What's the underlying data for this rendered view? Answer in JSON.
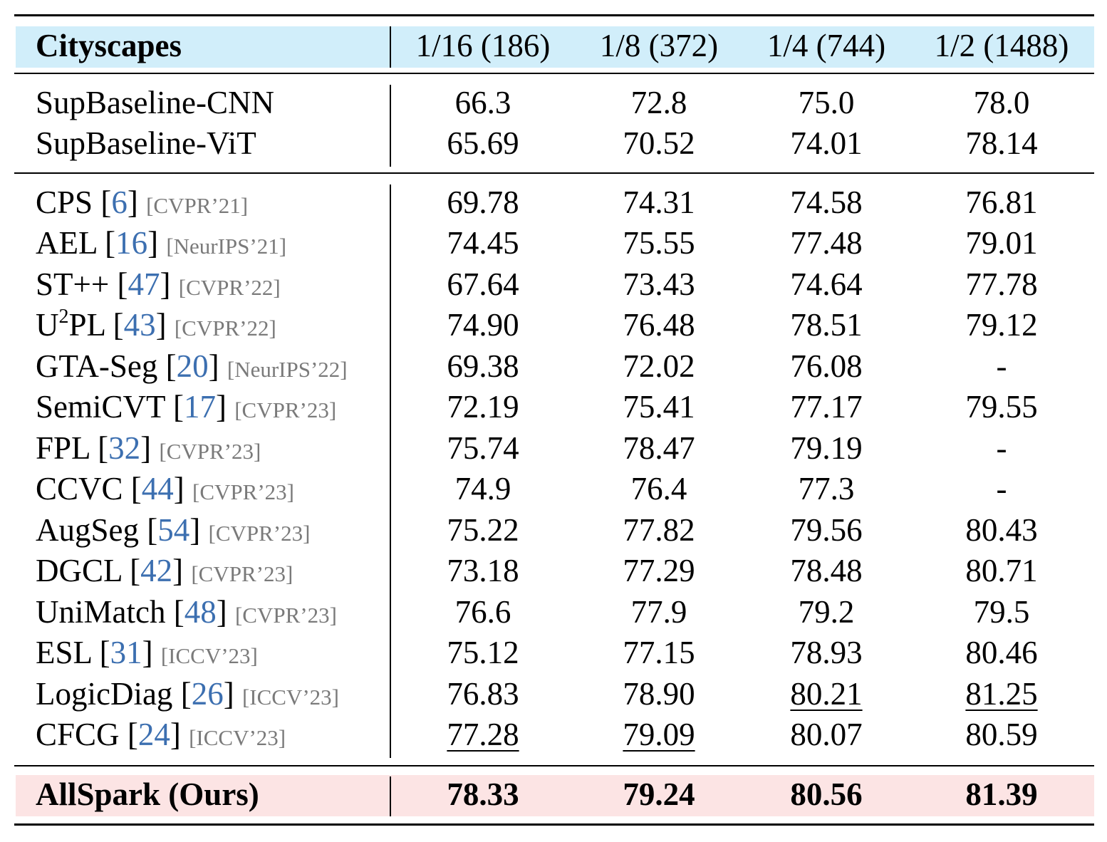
{
  "header": {
    "dataset": "Cityscapes",
    "columns": [
      "1/16 (186)",
      "1/8 (372)",
      "1/4 (744)",
      "1/2 (1488)"
    ]
  },
  "baselines": [
    {
      "name": "SupBaseline-CNN",
      "values": [
        "66.3",
        "72.8",
        "75.0",
        "78.0"
      ]
    },
    {
      "name": "SupBaseline-ViT",
      "values": [
        "65.69",
        "70.52",
        "74.01",
        "78.14"
      ]
    }
  ],
  "methods": [
    {
      "name": "CPS",
      "cite": "6",
      "venue": "[CVPR’21]",
      "values": [
        "69.78",
        "74.31",
        "74.58",
        "76.81"
      ]
    },
    {
      "name": "AEL",
      "cite": "16",
      "venue": "[NeurIPS’21]",
      "values": [
        "74.45",
        "75.55",
        "77.48",
        "79.01"
      ]
    },
    {
      "name": "ST++",
      "cite": "47",
      "venue": "[CVPR’22]",
      "values": [
        "67.64",
        "73.43",
        "74.64",
        "77.78"
      ]
    },
    {
      "name_base": "U",
      "name_sup": "2",
      "name_rest": "PL",
      "cite": "43",
      "venue": "[CVPR’22]",
      "values": [
        "74.90",
        "76.48",
        "78.51",
        "79.12"
      ]
    },
    {
      "name": "GTA-Seg",
      "cite": "20",
      "venue": "[NeurIPS’22]",
      "values": [
        "69.38",
        "72.02",
        "76.08",
        "-"
      ]
    },
    {
      "name": "SemiCVT",
      "cite": "17",
      "venue": "[CVPR’23]",
      "values": [
        "72.19",
        "75.41",
        "77.17",
        "79.55"
      ]
    },
    {
      "name": "FPL",
      "cite": "32",
      "venue": "[CVPR’23]",
      "values": [
        "75.74",
        "78.47",
        "79.19",
        "-"
      ]
    },
    {
      "name": "CCVC",
      "cite": "44",
      "venue": "[CVPR’23]",
      "values": [
        "74.9",
        "76.4",
        "77.3",
        "-"
      ]
    },
    {
      "name": "AugSeg",
      "cite": "54",
      "venue": "[CVPR’23]",
      "values": [
        "75.22",
        "77.82",
        "79.56",
        "80.43"
      ]
    },
    {
      "name": "DGCL",
      "cite": "42",
      "venue": "[CVPR’23]",
      "values": [
        "73.18",
        "77.29",
        "78.48",
        "80.71"
      ]
    },
    {
      "name": "UniMatch",
      "cite": "48",
      "venue": "[CVPR’23]",
      "values": [
        "76.6",
        "77.9",
        "79.2",
        "79.5"
      ]
    },
    {
      "name": "ESL",
      "cite": "31",
      "venue": "[ICCV’23]",
      "values": [
        "75.12",
        "77.15",
        "78.93",
        "80.46"
      ]
    },
    {
      "name": "LogicDiag",
      "cite": "26",
      "venue": "[ICCV’23]",
      "values": [
        "76.83",
        "78.90",
        "80.21",
        "81.25"
      ]
    },
    {
      "name": "CFCG",
      "cite": "24",
      "venue": "[ICCV’23]",
      "values": [
        "77.28",
        "79.09",
        "80.07",
        "80.59"
      ]
    }
  ],
  "ours": {
    "name": "AllSpark (Ours)",
    "values": [
      "78.33",
      "79.24",
      "80.56",
      "81.39"
    ]
  },
  "colors": {
    "header_band": "#d1eefa",
    "ours_band": "#fce4e4",
    "cite": "#3c6fb0",
    "venue": "#7a7a7a"
  }
}
